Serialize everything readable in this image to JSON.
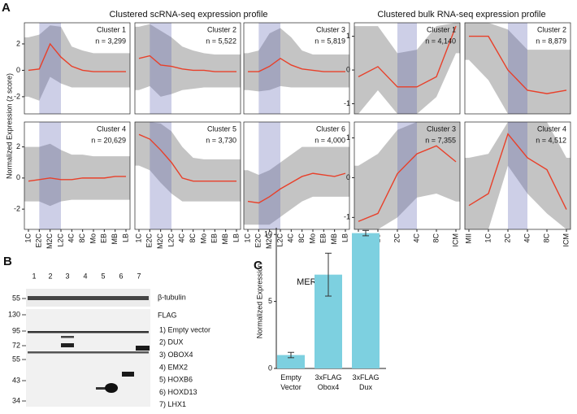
{
  "panel_labels": [
    "A",
    "B",
    "C"
  ],
  "profile_titles": [
    "Clustered scRNA-seq expression profile",
    "Clustered bulk RNA-seq expression profile"
  ],
  "profile_ylabel": "Normalized Expression (z score)",
  "chart_data": [
    {
      "type": "line",
      "title": "Cluster 1",
      "subtitle": "n = 3,299",
      "highlight": [
        1,
        3
      ],
      "color": "#e8402a",
      "range_color": "#c4c4c4",
      "values": [
        0,
        0.1,
        2.0,
        1.0,
        0.3,
        0,
        -0.1,
        -0.1,
        -0.1,
        -0.1
      ],
      "range_upper": [
        2.5,
        2.7,
        3.4,
        3.3,
        1.8,
        1.5,
        1.3,
        1.3,
        1.3,
        1.3
      ],
      "range_lower": [
        -2,
        -2.3,
        -0.5,
        -1,
        -1.3,
        -1.3,
        -1.3,
        -1.3,
        -1.3,
        -1.3
      ],
      "ylim": [
        -3.3,
        3.6
      ],
      "yticks": [
        -2,
        0,
        2
      ]
    },
    {
      "type": "line",
      "title": "Cluster 2",
      "subtitle": "n = 5,522",
      "highlight": [
        1,
        3
      ],
      "color": "#e8402a",
      "range_color": "#c4c4c4",
      "values": [
        0.9,
        1.1,
        0.4,
        0.3,
        0.1,
        0,
        0,
        -0.1,
        -0.1,
        -0.1
      ],
      "range_upper": [
        3.3,
        3.5,
        3,
        2.5,
        1.8,
        1.5,
        1.3,
        1.2,
        1.2,
        1.2
      ],
      "range_lower": [
        -1.5,
        -1.2,
        -2,
        -1.8,
        -1.5,
        -1.4,
        -1.3,
        -1.3,
        -1.3,
        -1.3
      ],
      "ylim": [
        -3.3,
        3.6
      ]
    },
    {
      "type": "line",
      "title": "Cluster 3",
      "subtitle": "n = 5,819",
      "highlight": [
        1,
        3
      ],
      "color": "#e8402a",
      "range_color": "#c4c4c4",
      "values": [
        -0.1,
        -0.1,
        0.3,
        0.9,
        0.4,
        0.1,
        0,
        -0.1,
        -0.1,
        -0.1
      ],
      "range_upper": [
        1.3,
        1.5,
        2.8,
        3.2,
        2.5,
        1.5,
        1.2,
        1.2,
        1.2,
        1.2
      ],
      "range_lower": [
        -1.5,
        -1.6,
        -1.5,
        -1.2,
        -1.3,
        -1.3,
        -1.3,
        -1.3,
        -1.3,
        -1.3
      ],
      "ylim": [
        -3.3,
        3.6
      ]
    },
    {
      "type": "line",
      "title": "Cluster 4",
      "subtitle": "n = 20,629",
      "highlight": [
        1,
        3
      ],
      "color": "#e8402a",
      "range_color": "#c4c4c4",
      "categories": [
        "1C",
        "E2C",
        "M2C",
        "L2C",
        "4C",
        "8C",
        "Mo",
        "EB",
        "MB",
        "LB"
      ],
      "values": [
        -0.2,
        -0.1,
        0,
        -0.1,
        -0.1,
        0,
        0,
        0,
        0.1,
        0.1
      ],
      "range_upper": [
        2,
        2,
        2.2,
        1.8,
        1.5,
        1.5,
        1.4,
        1.4,
        1.4,
        1.4
      ],
      "range_lower": [
        -1.5,
        -1.5,
        -1.8,
        -1.5,
        -1.4,
        -1.4,
        -1.4,
        -1.4,
        -1.4,
        -1.4
      ],
      "ylim": [
        -3.3,
        3.6
      ],
      "yticks": [
        -2,
        0,
        2
      ]
    },
    {
      "type": "line",
      "title": "Cluster 5",
      "subtitle": "n = 3,730",
      "highlight": [
        1,
        3
      ],
      "color": "#e8402a",
      "range_color": "#c4c4c4",
      "categories": [
        "1C",
        "E2C",
        "M2C",
        "L2C",
        "4C",
        "8C",
        "Mo",
        "EB",
        "MB",
        "LB"
      ],
      "values": [
        2.8,
        2.5,
        1.8,
        1.0,
        0,
        -0.2,
        -0.2,
        -0.2,
        -0.2,
        -0.2
      ],
      "range_upper": [
        3.6,
        3.6,
        3.5,
        3,
        2,
        1.3,
        1.2,
        1.2,
        1.2,
        1.2
      ],
      "range_lower": [
        0.8,
        0.5,
        -0.3,
        -1,
        -1.5,
        -1.5,
        -1.5,
        -1.5,
        -1.5,
        -1.5
      ],
      "ylim": [
        -3.3,
        3.6
      ]
    },
    {
      "type": "line",
      "title": "Cluster 6",
      "subtitle": "n = 4,000",
      "highlight": [
        1,
        3
      ],
      "color": "#e8402a",
      "range_color": "#c4c4c4",
      "categories": [
        "1C",
        "E2C",
        "M2C",
        "L2C",
        "4C",
        "8C",
        "Mo",
        "EB",
        "MB",
        "LB"
      ],
      "values": [
        -1.5,
        -1.6,
        -1.2,
        -0.7,
        -0.3,
        0.1,
        0.3,
        0.2,
        0.1,
        0.3
      ],
      "range_upper": [
        0.5,
        0.2,
        0.5,
        1,
        1.5,
        2,
        2,
        2,
        2,
        2
      ],
      "range_lower": [
        -3,
        -3,
        -3,
        -2.5,
        -2,
        -1.5,
        -1.2,
        -1.2,
        -1.2,
        -1.2
      ],
      "ylim": [
        -3.3,
        3.6
      ]
    },
    {
      "type": "line",
      "title": "Cluster 1",
      "subtitle": "n = 4,140",
      "highlight": [
        2,
        3
      ],
      "color": "#e8402a",
      "range_color": "#c4c4c4",
      "values": [
        -0.2,
        0.1,
        -0.5,
        -0.5,
        -0.2,
        1.3
      ],
      "range_upper": [
        1.3,
        1.3,
        0.5,
        0.6,
        1.3,
        1.4
      ],
      "range_lower": [
        -1.3,
        -0.6,
        -1.3,
        -1.3,
        -0.8,
        0.5
      ],
      "ylim": [
        -1.3,
        1.4
      ],
      "yticks": [
        -1,
        0,
        1
      ]
    },
    {
      "type": "line",
      "title": "Cluster 2",
      "subtitle": "n = 8,879",
      "highlight": [
        2,
        3
      ],
      "color": "#e8402a",
      "range_color": "#c4c4c4",
      "values": [
        1.0,
        1.0,
        0,
        -0.6,
        -0.7,
        -0.6
      ],
      "range_upper": [
        1.4,
        1.4,
        1.2,
        0.6,
        0.6,
        0.6
      ],
      "range_lower": [
        0.3,
        -0.3,
        -1.3,
        -1.3,
        -1.3,
        -1.3
      ],
      "ylim": [
        -1.3,
        1.4
      ]
    },
    {
      "type": "line",
      "title": "Cluster 3",
      "subtitle": "n = 7,355",
      "highlight": [
        2,
        3
      ],
      "color": "#e8402a",
      "range_color": "#c4c4c4",
      "categories": [
        "MII",
        "1C",
        "2C",
        "4C",
        "8C",
        "ICM"
      ],
      "values": [
        -1.1,
        -0.9,
        0.1,
        0.6,
        0.8,
        0.4
      ],
      "range_upper": [
        0.3,
        0.6,
        1.2,
        1.4,
        1.4,
        1.4
      ],
      "range_lower": [
        -1.3,
        -1.3,
        -1,
        -0.5,
        -0.4,
        -0.6
      ],
      "ylim": [
        -1.3,
        1.4
      ],
      "yticks": [
        -1,
        0,
        1
      ]
    },
    {
      "type": "line",
      "title": "Cluster 4",
      "subtitle": "n = 4,512",
      "highlight": [
        2,
        3
      ],
      "color": "#e8402a",
      "range_color": "#c4c4c4",
      "categories": [
        "MII",
        "1C",
        "2C",
        "4C",
        "8C",
        "ICM"
      ],
      "values": [
        -0.7,
        -0.4,
        1.1,
        0.5,
        0.2,
        -0.8
      ],
      "range_upper": [
        0.5,
        0.6,
        1.4,
        1.4,
        1.4,
        0.5
      ],
      "range_lower": [
        -1.3,
        -1.3,
        0.3,
        -0.4,
        -0.9,
        -1.3
      ],
      "ylim": [
        -1.3,
        1.4
      ]
    },
    {
      "type": "bar",
      "title": "MERVL",
      "y_label": "Normalized Expression",
      "color": "#7dd0e0",
      "categories": [
        "Empty\nVector",
        "3xFLAG\nObox4",
        "3xFLAG\nDux"
      ],
      "values": [
        1.0,
        7.0,
        10.1
      ],
      "errors": [
        0.2,
        1.6,
        0.2
      ],
      "ylim": [
        0,
        10.5
      ],
      "yticks": [
        0,
        5,
        10
      ]
    }
  ],
  "blot": {
    "lanes": [
      "1",
      "2",
      "3",
      "4",
      "5",
      "6",
      "7"
    ],
    "markers": [
      55,
      130,
      95,
      72,
      55,
      43,
      34
    ],
    "probes": [
      "β-tubulin",
      "FLAG"
    ],
    "samples": [
      "1) Empty vector",
      "2) DUX",
      "3) OBOX4",
      "4) EMX2",
      "5) HOXB6",
      "6) HOXD13",
      "7) LHX1"
    ]
  }
}
